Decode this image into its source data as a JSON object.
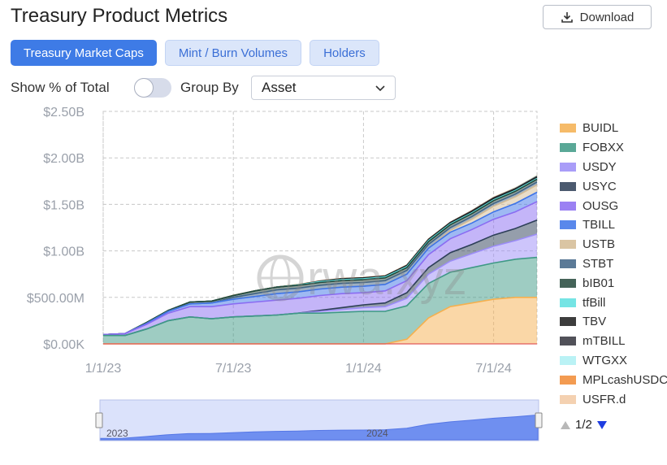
{
  "header": {
    "title": "Treasury Product Metrics",
    "download_label": "Download"
  },
  "tabs": [
    {
      "label": "Treasury Market Caps",
      "active": true
    },
    {
      "label": "Mint / Burn Volumes",
      "active": false
    },
    {
      "label": "Holders",
      "active": false
    }
  ],
  "controls": {
    "show_pct_label": "Show % of Total",
    "show_pct_on": false,
    "group_by_label": "Group By",
    "group_by_value": "Asset"
  },
  "watermark": "rwa.xyz",
  "pager": {
    "text": "1/2"
  },
  "colors": {
    "accent": "#3e7be6"
  },
  "chart_data": {
    "type": "area",
    "stacked": true,
    "title": "",
    "xlabel": "",
    "ylabel": "",
    "x_ticks": [
      "1/1/23",
      "7/1/23",
      "1/1/24",
      "7/1/24"
    ],
    "y_ticks": [
      "$0.00K",
      "$500.00M",
      "$1.00B",
      "$1.50B",
      "$2.00B",
      "$2.50B"
    ],
    "ylim": [
      0,
      2.5
    ],
    "y_unit": "USD billions",
    "grid": true,
    "legend": "right",
    "x": [
      "2023-01",
      "2023-02",
      "2023-03",
      "2023-04",
      "2023-05",
      "2023-06",
      "2023-07",
      "2023-08",
      "2023-09",
      "2023-10",
      "2023-11",
      "2023-12",
      "2024-01",
      "2024-02",
      "2024-03",
      "2024-04",
      "2024-05",
      "2024-06",
      "2024-07",
      "2024-08",
      "2024-09"
    ],
    "series": [
      {
        "name": "BUIDL",
        "color": "#f5b04f",
        "values": [
          0,
          0,
          0,
          0,
          0,
          0,
          0,
          0,
          0,
          0,
          0,
          0,
          0,
          0,
          0.05,
          0.28,
          0.4,
          0.44,
          0.48,
          0.5,
          0.5
        ]
      },
      {
        "name": "FOBXX",
        "color": "#3e9985",
        "values": [
          0.09,
          0.09,
          0.16,
          0.25,
          0.29,
          0.27,
          0.29,
          0.3,
          0.31,
          0.33,
          0.33,
          0.34,
          0.35,
          0.35,
          0.36,
          0.37,
          0.37,
          0.38,
          0.39,
          0.41,
          0.43
        ]
      },
      {
        "name": "USDY",
        "color": "#9b8cf7",
        "values": [
          0,
          0,
          0,
          0,
          0,
          0,
          0,
          0,
          0,
          0,
          0.02,
          0.03,
          0.04,
          0.05,
          0.08,
          0.1,
          0.12,
          0.15,
          0.18,
          0.2,
          0.25
        ]
      },
      {
        "name": "USYC",
        "color": "#2c3e57",
        "values": [
          0,
          0,
          0,
          0,
          0,
          0,
          0,
          0,
          0,
          0,
          0.01,
          0.02,
          0.03,
          0.04,
          0.06,
          0.07,
          0.09,
          0.1,
          0.12,
          0.13,
          0.15
        ]
      },
      {
        "name": "OUSG",
        "color": "#8a6cf2",
        "values": [
          0.01,
          0.02,
          0.05,
          0.08,
          0.11,
          0.13,
          0.14,
          0.15,
          0.16,
          0.16,
          0.16,
          0.15,
          0.13,
          0.13,
          0.13,
          0.14,
          0.15,
          0.16,
          0.17,
          0.18,
          0.2
        ]
      },
      {
        "name": "TBILL",
        "color": "#3d74e8",
        "values": [
          0,
          0,
          0.01,
          0.02,
          0.03,
          0.04,
          0.05,
          0.06,
          0.07,
          0.07,
          0.07,
          0.07,
          0.07,
          0.07,
          0.07,
          0.07,
          0.07,
          0.07,
          0.08,
          0.09,
          0.1
        ]
      },
      {
        "name": "USTB",
        "color": "#d4bc94",
        "values": [
          0,
          0,
          0,
          0,
          0,
          0,
          0,
          0,
          0,
          0,
          0,
          0,
          0,
          0,
          0,
          0,
          0.02,
          0.04,
          0.06,
          0.07,
          0.08
        ]
      },
      {
        "name": "STBT",
        "color": "#3f6385",
        "values": [
          0,
          0,
          0,
          0,
          0,
          0,
          0.02,
          0.03,
          0.04,
          0.04,
          0.04,
          0.04,
          0.04,
          0.04,
          0.04,
          0.04,
          0.03,
          0.03,
          0.03,
          0.03,
          0.03
        ]
      },
      {
        "name": "bIB01",
        "color": "#24483c",
        "values": [
          0,
          0,
          0.01,
          0.01,
          0.02,
          0.02,
          0.02,
          0.03,
          0.03,
          0.03,
          0.03,
          0.03,
          0.03,
          0.03,
          0.03,
          0.03,
          0.03,
          0.03,
          0.03,
          0.03,
          0.03
        ]
      },
      {
        "name": "tfBill",
        "color": "#5ee0e0",
        "values": [
          0,
          0,
          0,
          0,
          0,
          0,
          0,
          0,
          0,
          0.005,
          0.01,
          0.01,
          0.01,
          0.01,
          0.01,
          0.01,
          0.01,
          0.01,
          0.01,
          0.01,
          0.01
        ]
      },
      {
        "name": "TBV",
        "color": "#1c1c1c",
        "values": [
          0,
          0,
          0,
          0,
          0,
          0,
          0,
          0,
          0,
          0,
          0.005,
          0.01,
          0.01,
          0.01,
          0.01,
          0.01,
          0.01,
          0.01,
          0.01,
          0.01,
          0.01
        ]
      },
      {
        "name": "mTBILL",
        "color": "#33333d",
        "values": [
          0,
          0,
          0,
          0,
          0,
          0,
          0,
          0,
          0,
          0,
          0,
          0,
          0,
          0,
          0.005,
          0.005,
          0.005,
          0.01,
          0.01,
          0.01,
          0.01
        ]
      },
      {
        "name": "WTGXX",
        "color": "#aef0f4",
        "values": [
          0,
          0,
          0,
          0,
          0,
          0,
          0,
          0,
          0,
          0,
          0,
          0,
          0,
          0,
          0,
          0,
          0,
          0,
          0.002,
          0.003,
          0.005
        ]
      },
      {
        "name": "MPLcashUSDC",
        "color": "#f28a33",
        "values": [
          0,
          0,
          0,
          0,
          0,
          0,
          0.002,
          0.002,
          0.002,
          0.002,
          0.002,
          0.002,
          0.002,
          0.002,
          0.002,
          0.002,
          0.002,
          0.002,
          0.002,
          0.002,
          0.002
        ]
      },
      {
        "name": "USFR.d",
        "color": "#f3c9a4",
        "values": [
          0,
          0,
          0,
          0,
          0,
          0,
          0,
          0,
          0,
          0,
          0,
          0,
          0,
          0,
          0,
          0,
          0,
          0.001,
          0.001,
          0.001,
          0.001
        ]
      }
    ],
    "navigator": {
      "labels": [
        "2023",
        "2024"
      ]
    }
  }
}
